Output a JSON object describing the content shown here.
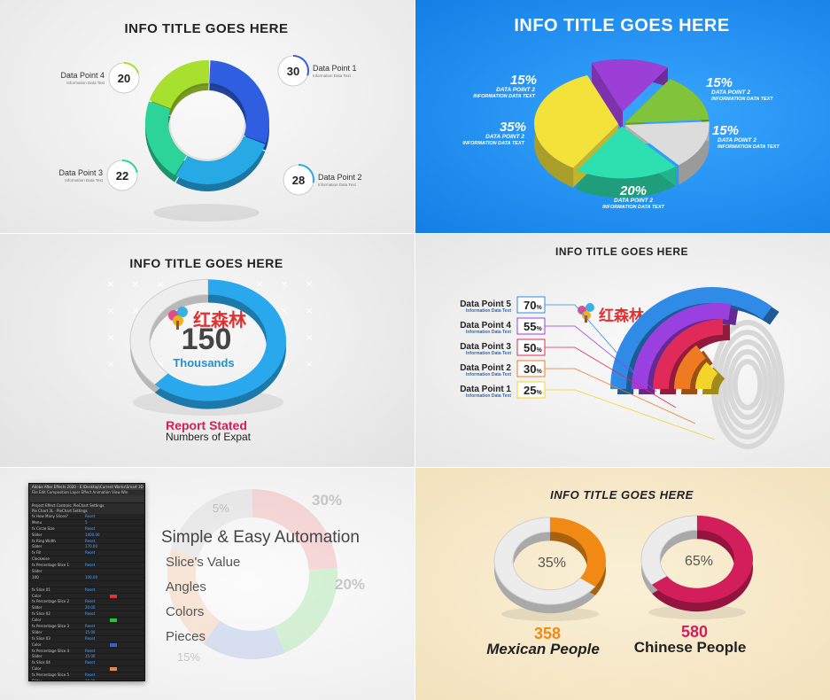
{
  "panels": {
    "p1": {
      "title": "INFO TITLE GOES HERE",
      "sub_label": "Information Data Text"
    },
    "p2": {
      "title": "INFO TITLE GOES HERE",
      "sub_label_a": "DATA POINT 2",
      "sub_label_b": "INFORMATION DATA TEXT"
    },
    "p3": {
      "number": "150",
      "unit": "Thousands",
      "caption_top": "Report Stated",
      "caption_bottom": "Numbers of Expat",
      "title": "INFO TITLE GOES HERE"
    },
    "p4": {
      "title": "INFO TITLE GOES HERE",
      "sub_label": "Information Data Text"
    },
    "p5": {
      "headline": "Simple & Easy Automation",
      "items": [
        "Slice's Value",
        "Angles",
        "Colors",
        "Pieces"
      ],
      "ae_title": "Adobe After Effects 2020 - E:\\Desktop\\Current Works\\Smart 3D C",
      "ae_menu": "File  Edit  Composition  Layer  Effect  Animation  View  Win",
      "ae_tab": "Project   Effect Controls: PieChart Settings",
      "ae_comp": "Pie Chart 3L · PieChart Settings",
      "ae_rows": [
        {
          "name": "fx How Many Slices?",
          "val": "Reset",
          "sw": ""
        },
        {
          "name": "   Menu",
          "val": "5",
          "sw": ""
        },
        {
          "name": "fx Circle Size",
          "val": "Reset",
          "sw": ""
        },
        {
          "name": "   Slider",
          "val": "1400.00",
          "sw": ""
        },
        {
          "name": "fx Ring Width",
          "val": "Reset",
          "sw": ""
        },
        {
          "name": "   Slider",
          "val": "170.00",
          "sw": ""
        },
        {
          "name": "fx Fill",
          "val": "Reset",
          "sw": ""
        },
        {
          "name": "   Clockwise",
          "val": "",
          "sw": ""
        },
        {
          "name": "fx Percentage Slice 1",
          "val": "Reset",
          "sw": ""
        },
        {
          "name": "   Slider",
          "val": "",
          "sw": ""
        },
        {
          "name": "   100",
          "val": "100.00",
          "sw": ""
        },
        {
          "name": "",
          "val": "",
          "sw": ""
        },
        {
          "name": "fx Slice 01",
          "val": "Reset",
          "sw": ""
        },
        {
          "name": "   Color",
          "val": "",
          "sw": "#d33"
        },
        {
          "name": "fx Percentage Slice 2",
          "val": "Reset",
          "sw": ""
        },
        {
          "name": "   Slider",
          "val": "20.00",
          "sw": ""
        },
        {
          "name": "fx Slice 02",
          "val": "Reset",
          "sw": ""
        },
        {
          "name": "   Color",
          "val": "",
          "sw": "#2c2"
        },
        {
          "name": "fx Percentage Slice 3",
          "val": "Reset",
          "sw": ""
        },
        {
          "name": "   Slider",
          "val": "15.00",
          "sw": ""
        },
        {
          "name": "fx Slice 03",
          "val": "Reset",
          "sw": ""
        },
        {
          "name": "   Color",
          "val": "",
          "sw": "#36c"
        },
        {
          "name": "fx Percentage Slice 4",
          "val": "Reset",
          "sw": ""
        },
        {
          "name": "   Slider",
          "val": "15.00",
          "sw": ""
        },
        {
          "name": "fx Slice 04",
          "val": "Reset",
          "sw": ""
        },
        {
          "name": "   Color",
          "val": "",
          "sw": "#e83"
        },
        {
          "name": "fx Percentage Slice 5",
          "val": "Reset",
          "sw": ""
        },
        {
          "name": "   Slider",
          "val": "10.00",
          "sw": ""
        },
        {
          "name": "fx Slice 05",
          "val": "Reset",
          "sw": ""
        },
        {
          "name": "   Color",
          "val": "",
          "sw": "#ddd"
        }
      ],
      "bg_labels": [
        "5%",
        "30%",
        "20%",
        "15%"
      ]
    },
    "p6": {
      "title": "INFO TITLE GOES HERE"
    }
  },
  "watermark_text": "红森林",
  "chart_data": [
    {
      "type": "pie",
      "title": "INFO TITLE GOES HERE",
      "labels": [
        "Data Point 1",
        "Data Point 2",
        "Data Point 3",
        "Data Point 4"
      ],
      "values": [
        30,
        28,
        22,
        20
      ],
      "colors": [
        "#2f5fe0",
        "#27a9e6",
        "#2cd49a",
        "#a8e030"
      ]
    },
    {
      "type": "pie",
      "title": "INFO TITLE GOES HERE",
      "labels": [
        "15%",
        "15%",
        "15%",
        "20%",
        "35%"
      ],
      "values": [
        15,
        15,
        15,
        20,
        35
      ],
      "colors": [
        "#9c3fd6",
        "#7fc43a",
        "#dcdcdc",
        "#2ee0b0",
        "#f2e23a"
      ]
    },
    {
      "type": "pie",
      "labels": [
        "150"
      ],
      "values": [
        62
      ],
      "colors": [
        "#2aa8ee"
      ]
    },
    {
      "type": "bar",
      "title": "INFO TITLE GOES HERE",
      "categories": [
        "Data Point 5",
        "Data Point 4",
        "Data Point 3",
        "Data Point 2",
        "Data Point 1"
      ],
      "values": [
        70,
        55,
        50,
        30,
        25
      ],
      "value_labels": [
        "70",
        "55",
        "50",
        "30",
        "25"
      ],
      "colors": [
        "#2f8be6",
        "#9a3fe0",
        "#e02a5a",
        "#f07a22",
        "#f5d42a"
      ]
    },
    {
      "type": "pie",
      "title": "INFO TITLE GOES HERE",
      "labels": [
        "35%",
        "65%"
      ],
      "values": [
        35,
        65
      ],
      "counts": [
        "358",
        "580"
      ],
      "names": [
        "Mexican People",
        "Chinese People"
      ],
      "colors": [
        "#f08a14",
        "#d21e5a"
      ]
    }
  ]
}
